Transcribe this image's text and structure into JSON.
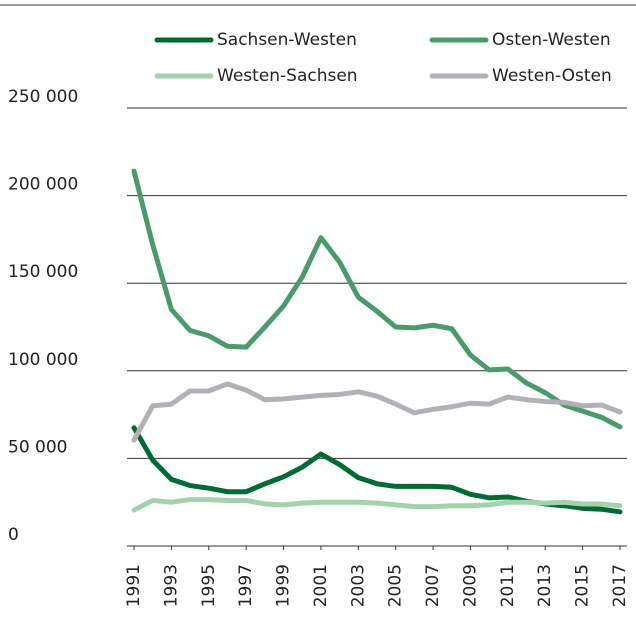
{
  "chart_data": {
    "type": "line",
    "x": [
      1991,
      1992,
      1993,
      1994,
      1995,
      1996,
      1997,
      1998,
      1999,
      2000,
      2001,
      2002,
      2003,
      2004,
      2005,
      2006,
      2007,
      2008,
      2009,
      2010,
      2011,
      2012,
      2013,
      2014,
      2015,
      2016,
      2017
    ],
    "series": [
      {
        "name": "Sachsen-Westen",
        "color": "#006a35",
        "values": [
          67500,
          49000,
          38000,
          34500,
          33000,
          31000,
          31000,
          35500,
          39500,
          45000,
          52500,
          46500,
          39000,
          35500,
          34000,
          34000,
          34000,
          33500,
          29500,
          27500,
          28000,
          25500,
          24000,
          23000,
          21500,
          21000,
          19500
        ]
      },
      {
        "name": "Osten-Westen",
        "color": "#4a9a6c",
        "values": [
          214000,
          172000,
          135000,
          123000,
          120000,
          114000,
          113500,
          125000,
          137000,
          153500,
          176000,
          162000,
          142000,
          134000,
          125000,
          124500,
          126000,
          124000,
          109000,
          100500,
          101000,
          93000,
          87500,
          80500,
          77000,
          73500,
          68000
        ]
      },
      {
        "name": "Westen-Sachsen",
        "color": "#a3d3ad",
        "values": [
          20500,
          26000,
          25000,
          26500,
          26500,
          26000,
          26000,
          24000,
          23500,
          24500,
          25000,
          25000,
          25000,
          24500,
          23500,
          22500,
          22500,
          23000,
          23000,
          23500,
          25000,
          25000,
          24500,
          25000,
          24000,
          24000,
          23000
        ]
      },
      {
        "name": "Westen-Osten",
        "color": "#b2b2b6",
        "values": [
          60500,
          80000,
          81000,
          88500,
          88500,
          92500,
          89000,
          83500,
          84000,
          85000,
          86000,
          86500,
          88000,
          85500,
          81000,
          76000,
          78000,
          79500,
          81500,
          81000,
          85000,
          83500,
          82500,
          82000,
          80000,
          80500,
          76500
        ]
      }
    ],
    "xlim": [
      1991,
      2017
    ],
    "xticks": [
      1991,
      1993,
      1995,
      1997,
      1999,
      2001,
      2003,
      2005,
      2007,
      2009,
      2011,
      2013,
      2015,
      2017
    ],
    "ylim": [
      0,
      250000
    ],
    "yticks": [
      0,
      {
        "value": 50000,
        "label": "50 000"
      },
      {
        "value": 100000,
        "label": "100 000"
      },
      {
        "value": 150000,
        "label": "150 000"
      },
      {
        "value": 200000,
        "label": "200 000"
      },
      {
        "value": 250000,
        "label": "250 000"
      }
    ],
    "grid": true
  }
}
